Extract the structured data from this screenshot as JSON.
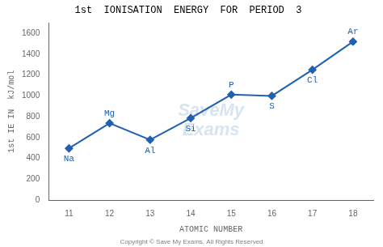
{
  "chart_data": {
    "type": "line",
    "title": "1st  IONISATION  ENERGY  FOR  PERIOD  3",
    "x": [
      11,
      12,
      13,
      14,
      15,
      16,
      17,
      18
    ],
    "values": [
      496,
      738,
      578,
      786,
      1012,
      1000,
      1251,
      1521
    ],
    "point_labels": [
      "Na",
      "Mg",
      "Al",
      "Si",
      "P",
      "S",
      "Cl",
      "Ar"
    ],
    "xlabel": "ATOMIC NUMBER",
    "ylabel": "1st IE IN  kJ/mol",
    "xlim": [
      10.5,
      18.5
    ],
    "ylim": [
      0,
      1700
    ],
    "xticks": [
      11,
      12,
      13,
      14,
      15,
      16,
      17,
      18
    ],
    "yticks": [
      0,
      200,
      400,
      600,
      800,
      1000,
      1200,
      1400,
      1600
    ],
    "color": "#2060b0",
    "marker": "diamond",
    "grid": false,
    "watermark": "SaveMy\nExams",
    "footnote": "Copyright © Save My Exams. All Rights Reserved"
  }
}
